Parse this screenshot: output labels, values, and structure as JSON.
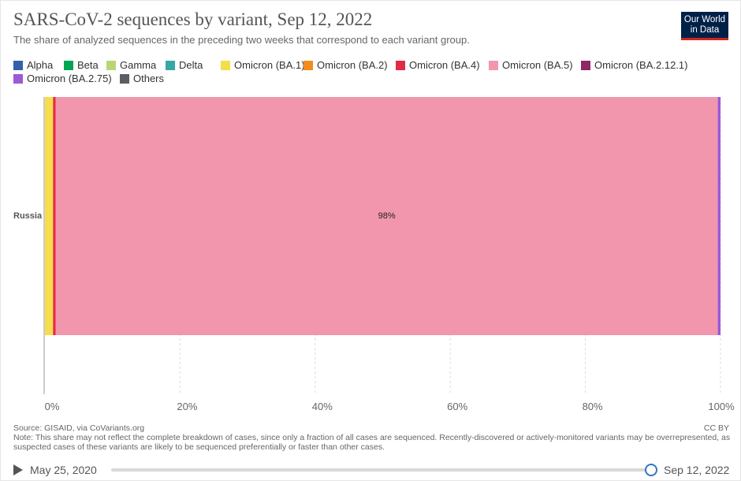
{
  "title": "SARS-CoV-2 sequences by variant, Sep 12, 2022",
  "subtitle": "The share of analyzed sequences in the preceding two weeks that correspond to each variant group.",
  "logo": {
    "line1": "Our World",
    "line2": "in Data"
  },
  "legend": [
    {
      "label": "Alpha",
      "color": "#3360a9"
    },
    {
      "label": "Beta",
      "color": "#00a651"
    },
    {
      "label": "Gamma",
      "color": "#b8d677"
    },
    {
      "label": "Delta",
      "color": "#38a6a5"
    },
    {
      "label": "Omicron (BA.1)",
      "color": "#f5dd4b"
    },
    {
      "label": "Omicron (BA.2)",
      "color": "#f28c1f"
    },
    {
      "label": "Omicron (BA.4)",
      "color": "#e22c45"
    },
    {
      "label": "Omicron (BA.5)",
      "color": "#f196ad"
    },
    {
      "label": "Omicron (BA.2.12.1)",
      "color": "#8e2868"
    },
    {
      "label": "Omicron (BA.2.75)",
      "color": "#9b5ad6"
    },
    {
      "label": "Others",
      "color": "#5b5e63"
    }
  ],
  "chart_data": {
    "type": "bar",
    "orientation": "horizontal",
    "stacked": true,
    "categories": [
      "Russia"
    ],
    "series": [
      {
        "name": "Omicron (BA.1)",
        "color": "#f5dd4b",
        "values": [
          1.2
        ]
      },
      {
        "name": "Omicron (BA.4)",
        "color": "#e22c45",
        "values": [
          0.4
        ]
      },
      {
        "name": "Omicron (BA.5)",
        "color": "#f196ad",
        "values": [
          98
        ],
        "label": "98%"
      },
      {
        "name": "Omicron (BA.2.75)",
        "color": "#9b5ad6",
        "values": [
          0.4
        ]
      }
    ],
    "xlim": [
      0,
      100
    ],
    "xticks": [
      "0%",
      "20%",
      "40%",
      "60%",
      "80%",
      "100%"
    ],
    "grid": true
  },
  "footer": {
    "source": "Source: GISAID, via CoVariants.org",
    "note": "Note: This share may not reflect the complete breakdown of cases, since only a fraction of all cases are sequenced. Recently-discovered or actively-monitored variants may be overrepresented, as suspected cases of these variants are likely to be sequenced preferentially or faster than other cases.",
    "license": "CC BY"
  },
  "timeline": {
    "start": "May 25, 2020",
    "end": "Sep 12, 2022",
    "position": 1.0
  }
}
